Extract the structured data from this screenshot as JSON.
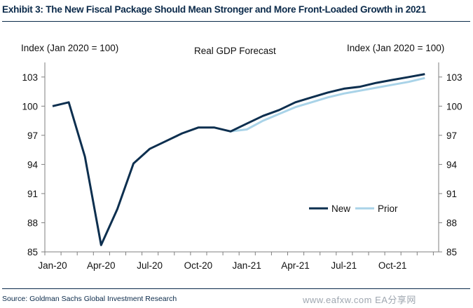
{
  "header": {
    "title": "Exhibit 3: The New Fiscal Package Should Mean Stronger and More Front-Loaded Growth in 2021"
  },
  "footer": {
    "source": "Source: Goldman Sachs Global Investment Research",
    "watermark": "www.eafxw.com    EA分享网"
  },
  "chart_data": {
    "type": "line",
    "title": "Real GDP Forecast",
    "ylabel_left": "Index (Jan 2020 = 100)",
    "ylabel_right": "Index (Jan 2020 = 100)",
    "ylim": [
      85,
      104.5
    ],
    "yticks": [
      85,
      88,
      91,
      94,
      97,
      100,
      103
    ],
    "xticks": [
      "Jan-20",
      "Apr-20",
      "Jul-20",
      "Oct-20",
      "Jan-21",
      "Apr-21",
      "Jul-21",
      "Oct-21"
    ],
    "x": [
      "Jan-20",
      "Feb-20",
      "Mar-20",
      "Apr-20",
      "May-20",
      "Jun-20",
      "Jul-20",
      "Aug-20",
      "Sep-20",
      "Oct-20",
      "Nov-20",
      "Dec-20",
      "Jan-21",
      "Feb-21",
      "Mar-21",
      "Apr-21",
      "May-21",
      "Jun-21",
      "Jul-21",
      "Aug-21",
      "Sep-21",
      "Oct-21",
      "Nov-21",
      "Dec-21"
    ],
    "series": [
      {
        "name": "New",
        "color": "#0d2f4f",
        "values": [
          100.0,
          100.4,
          94.8,
          85.7,
          89.4,
          94.1,
          95.6,
          96.4,
          97.2,
          97.8,
          97.8,
          97.4,
          98.2,
          99.0,
          99.6,
          100.4,
          100.9,
          101.4,
          101.8,
          102.0,
          102.4,
          102.7,
          103.0,
          103.3
        ]
      },
      {
        "name": "Prior",
        "color": "#a9d3e8",
        "values": [
          null,
          null,
          null,
          null,
          null,
          null,
          null,
          null,
          null,
          null,
          null,
          97.4,
          97.6,
          98.5,
          99.2,
          99.9,
          100.4,
          100.9,
          101.3,
          101.6,
          101.9,
          102.2,
          102.5,
          102.9
        ]
      }
    ],
    "legend": {
      "placement": "bottom-right",
      "entries": [
        "New",
        "Prior"
      ]
    },
    "grid": false
  }
}
